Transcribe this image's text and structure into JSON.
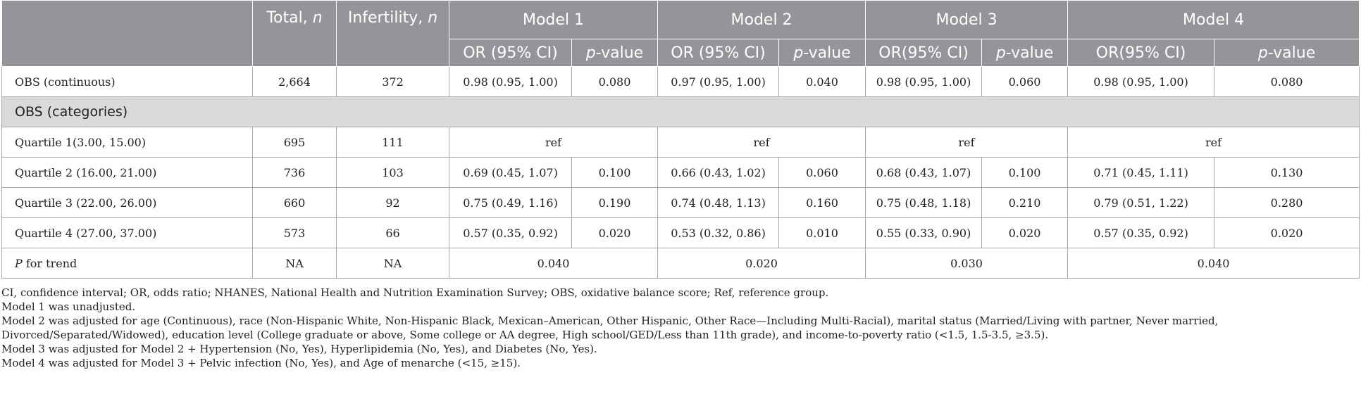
{
  "header": {
    "total_main": "Total, ",
    "total_italic": "n",
    "infertility_main": "Infertility, ",
    "infertility_italic": "n",
    "models": [
      "Model 1",
      "Model 2",
      "Model 3",
      "Model 4"
    ],
    "or_labels": [
      "OR (95% CI)",
      "OR (95% CI)",
      "OR(95% CI)",
      "OR(95% CI)"
    ],
    "p_italic": "p",
    "p_rest": "-value"
  },
  "rows": {
    "continuous": {
      "label": "OBS (continuous)",
      "total": "2,664",
      "infertility": "372",
      "m1_or": "0.98 (0.95, 1.00)",
      "m1_p": "0.080",
      "m2_or": "0.97 (0.95, 1.00)",
      "m2_p": "0.040",
      "m3_or": "0.98 (0.95, 1.00)",
      "m3_p": "0.060",
      "m4_or": "0.98 (0.95, 1.00)",
      "m4_p": "0.080"
    },
    "section_label": "OBS (categories)",
    "q1": {
      "label": "Quartile 1(3.00, 15.00)",
      "total": "695",
      "infertility": "111",
      "m1": "ref",
      "m2": "ref",
      "m3": "ref",
      "m4": "ref"
    },
    "q2": {
      "label": "Quartile 2 (16.00, 21.00)",
      "total": "736",
      "infertility": "103",
      "m1_or": "0.69 (0.45, 1.07)",
      "m1_p": "0.100",
      "m2_or": "0.66 (0.43, 1.02)",
      "m2_p": "0.060",
      "m3_or": "0.68 (0.43, 1.07)",
      "m3_p": "0.100",
      "m4_or": "0.71 (0.45, 1.11)",
      "m4_p": "0.130"
    },
    "q3": {
      "label": "Quartile 3 (22.00, 26.00)",
      "total": "660",
      "infertility": "92",
      "m1_or": "0.75 (0.49, 1.16)",
      "m1_p": "0.190",
      "m2_or": "0.74 (0.48, 1.13)",
      "m2_p": "0.160",
      "m3_or": "0.75 (0.48, 1.18)",
      "m3_p": "0.210",
      "m4_or": "0.79 (0.51, 1.22)",
      "m4_p": "0.280"
    },
    "q4": {
      "label": "Quartile 4 (27.00, 37.00)",
      "total": "573",
      "infertility": "66",
      "m1_or": "0.57 (0.35, 0.92)",
      "m1_p": "0.020",
      "m2_or": "0.53 (0.32, 0.86)",
      "m2_p": "0.010",
      "m3_or": "0.55 (0.33, 0.90)",
      "m3_p": "0.020",
      "m4_or": "0.57 (0.35, 0.92)",
      "m4_p": "0.020"
    },
    "trend": {
      "label_italic": "P",
      "label_rest": " for trend",
      "total": "NA",
      "infertility": "NA",
      "m1": "0.040",
      "m2": "0.020",
      "m3": "0.030",
      "m4": "0.040"
    }
  },
  "notes": [
    "CI, confidence interval; OR, odds ratio; NHANES, National Health and Nutrition Examination Survey; OBS, oxidative balance score; Ref, reference group.",
    "Model 1 was unadjusted.",
    "Model 2 was adjusted for age (Continuous), race (Non-Hispanic White, Non-Hispanic Black, Mexican–American, Other Hispanic, Other Race—Including Multi-Racial), marital status (Married/Living with partner, Never married, Divorced/Separated/Widowed), education level (College graduate or above, Some college or AA degree, High school/GED/Less than 11th grade), and income-to-poverty ratio (<1.5, 1.5-3.5, ≥3.5).",
    "Model 3 was adjusted for Model 2 + Hypertension (No, Yes), Hyperlipidemia (No, Yes), and Diabetes (No, Yes).",
    "Model 4 was adjusted for Model 3 + Pelvic infection (No, Yes), and Age of menarche (<15, ≥15)."
  ]
}
